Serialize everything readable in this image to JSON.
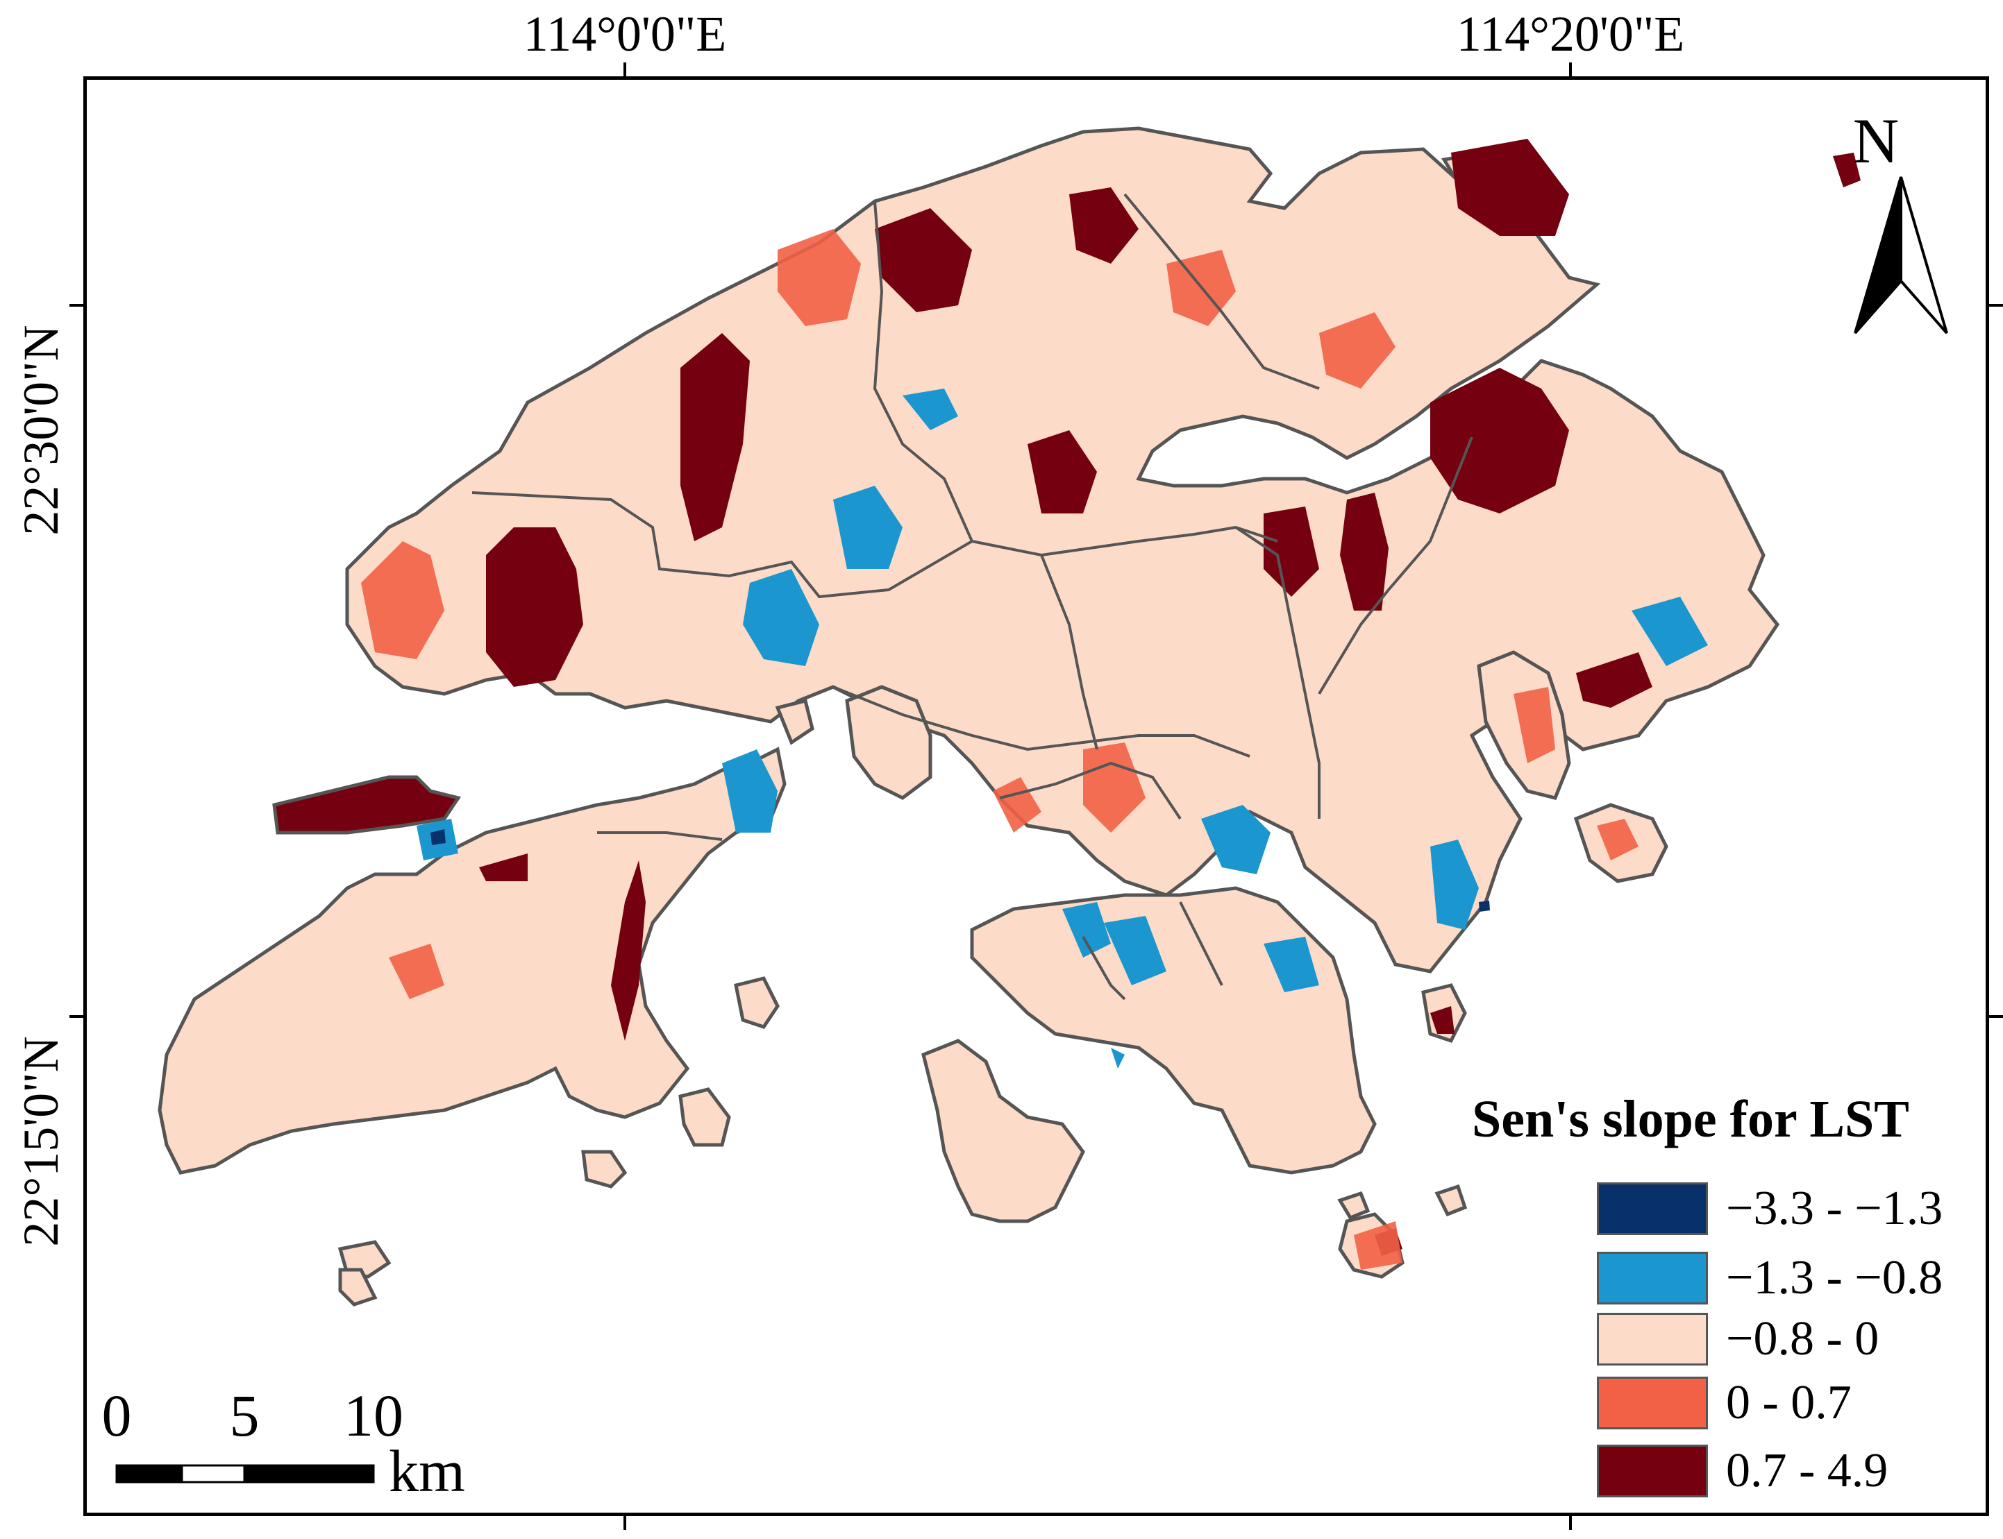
{
  "graticule": {
    "longitudes": [
      "114°0'0\"E",
      "114°20'0\"E"
    ],
    "latitudes": [
      "22°30'0\"N",
      "22°15'0\"N"
    ]
  },
  "north_arrow": {
    "label": "N"
  },
  "scale_bar": {
    "ticks": [
      "0",
      "5",
      "10"
    ],
    "unit": "km"
  },
  "legend": {
    "title": "Sen's slope for LST",
    "classes": [
      {
        "label": "−3.3 - −1.3",
        "color": "#08306b"
      },
      {
        "label": "−1.3 - −0.8",
        "color": "#1b96cf"
      },
      {
        "label": "−0.8 - 0",
        "color": "#fcdbc8"
      },
      {
        "label": "0 - 0.7",
        "color": "#f26046"
      },
      {
        "label": "0.7 - 4.9",
        "color": "#750010"
      }
    ]
  },
  "colors": {
    "boundary": "#555555",
    "frame": "#000000"
  }
}
